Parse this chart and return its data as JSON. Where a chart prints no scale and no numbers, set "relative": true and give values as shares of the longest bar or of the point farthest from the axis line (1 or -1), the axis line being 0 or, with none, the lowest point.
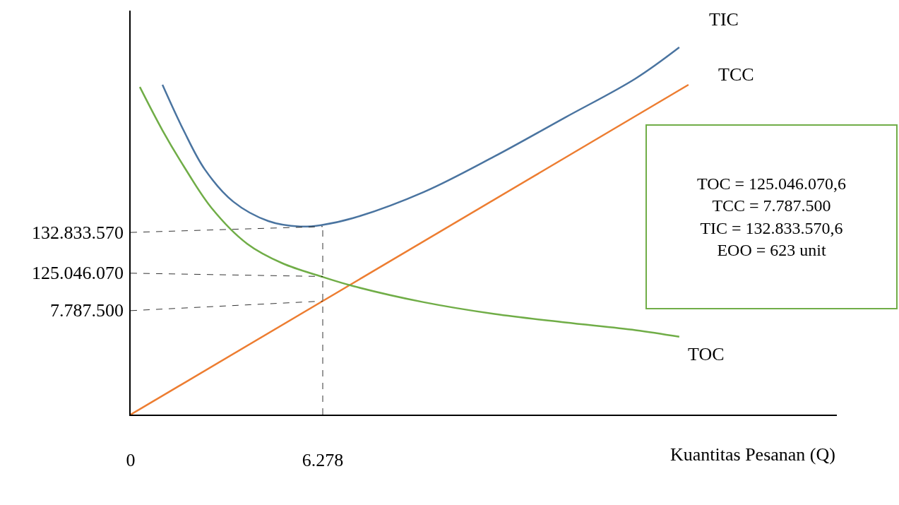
{
  "chart_data": {
    "type": "line",
    "relative": true,
    "xlabel": "Kuantitas Pesanan (Q)",
    "xlim": [
      0,
      23.08
    ],
    "xticks": [
      0,
      6.278
    ],
    "tick_labels": "x",
    "marker": "none",
    "series": [
      {
        "name": "TIC",
        "color": "#4a74a0",
        "x": [
          1.04,
          1.73,
          2.42,
          3.35,
          4.5,
          5.54,
          6.23,
          7.27,
          9.58,
          11.89,
          14.2,
          16.5,
          17.93
        ],
        "values": [
          0.898,
          0.774,
          0.668,
          0.58,
          0.527,
          0.512,
          0.516,
          0.535,
          0.606,
          0.703,
          0.809,
          0.915,
          1
        ]
      },
      {
        "name": "TCC",
        "color": "#ed7d31",
        "x": [
          0,
          18.23
        ],
        "values": [
          0,
          0.898
        ]
      },
      {
        "name": "TOC",
        "color": "#70ad47",
        "x": [
          0.3,
          1.04,
          1.73,
          2.65,
          3.81,
          4.96,
          6.23,
          7.27,
          9.58,
          11.89,
          14.2,
          16.5,
          17.93
        ],
        "values": [
          0.892,
          0.774,
          0.677,
          0.562,
          0.465,
          0.412,
          0.376,
          0.35,
          0.306,
          0.274,
          0.251,
          0.23,
          0.212
        ]
      },
      {
        "name": "132.833.570",
        "color": "#000000",
        "line_style": "dashed",
        "x": [
          0,
          6.278
        ],
        "values": [
          0.496,
          0.512
        ]
      },
      {
        "name": "125.046.070",
        "color": "#000000",
        "line_style": "dashed",
        "x": [
          0,
          6.278
        ],
        "values": [
          0.385,
          0.376
        ]
      },
      {
        "name": "7.787.500",
        "color": "#000000",
        "line_style": "dashed",
        "x": [
          0,
          6.278
        ],
        "values": [
          0.283,
          0.309
        ]
      },
      {
        "color": "#000000",
        "line_style": "dashed",
        "x": [
          6.278,
          6.278
        ],
        "values": [
          0,
          0.512
        ]
      }
    ],
    "annotations": [
      "TOC = 125.046.070,6",
      "TCC = 7.787.500",
      "TIC = 132.833.570,6",
      "EOO = 623 unit"
    ]
  }
}
